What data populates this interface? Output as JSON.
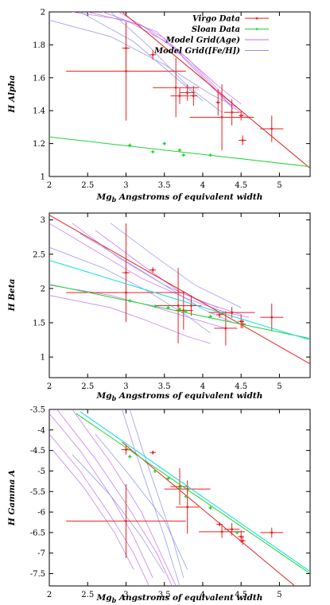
{
  "chart_data": [
    {
      "type": "scatter",
      "xlabel": "Mg_b Angstroms of equivalent width",
      "ylabel": "H Alpha",
      "xlim": [
        2,
        5.4
      ],
      "ylim": [
        1,
        2
      ],
      "xticks": [
        "2",
        "2.5",
        "3",
        "3.5",
        "4",
        "4.5",
        "5"
      ],
      "yticks": [
        "1",
        "1.2",
        "1.4",
        "1.6",
        "1.8",
        "2"
      ],
      "legend": {
        "placement": "top-right",
        "entries": [
          "Virgo Data",
          "Sloan Data",
          "Model Grid(Age)",
          "Model Grid([Fe/H])"
        ]
      },
      "series": [
        {
          "name": "Virgo Data",
          "color": "#e8211d",
          "points": [
            {
              "x": 3.0,
              "y": 1.78,
              "xerr": 0.05,
              "yerr": 0.12
            },
            {
              "x": 3.0,
              "y": 1.64,
              "xerr": 0.78,
              "yerr": 0.3
            },
            {
              "x": 3.35,
              "y": 1.74,
              "xerr": 0.04,
              "yerr": 0.03
            },
            {
              "x": 3.65,
              "y": 1.54,
              "xerr": 0.3,
              "yerr": 0.18
            },
            {
              "x": 3.7,
              "y": 1.49,
              "xerr": 0.12,
              "yerr": 0.05
            },
            {
              "x": 3.8,
              "y": 1.51,
              "xerr": 0.1,
              "yerr": 0.05
            },
            {
              "x": 3.88,
              "y": 1.49,
              "xerr": 0.05,
              "yerr": 0.06
            },
            {
              "x": 4.2,
              "y": 1.45,
              "xerr": 0.03,
              "yerr": 0.08
            },
            {
              "x": 4.25,
              "y": 1.36,
              "xerr": 0.42,
              "yerr": 0.2
            },
            {
              "x": 4.38,
              "y": 1.39,
              "xerr": 0.1,
              "yerr": 0.08
            },
            {
              "x": 4.5,
              "y": 1.37,
              "xerr": 0.03,
              "yerr": 0.03
            },
            {
              "x": 4.52,
              "y": 1.22,
              "xerr": 0.05,
              "yerr": 0.03
            },
            {
              "x": 4.9,
              "y": 1.29,
              "xerr": 0.15,
              "yerr": 0.08
            }
          ],
          "fit": [
            [
              2.95,
              2.0
            ],
            [
              5.4,
              1.05
            ]
          ]
        },
        {
          "name": "Sloan Data",
          "color": "#22d433",
          "points": [
            {
              "x": 3.05,
              "y": 1.19
            },
            {
              "x": 3.35,
              "y": 1.15
            },
            {
              "x": 3.5,
              "y": 1.2
            },
            {
              "x": 3.7,
              "y": 1.16
            },
            {
              "x": 3.75,
              "y": 1.13
            },
            {
              "x": 4.1,
              "y": 1.13
            }
          ],
          "fit": [
            [
              2,
              1.24
            ],
            [
              5.4,
              1.06
            ]
          ]
        }
      ],
      "model_grid_age": [
        [
          [
            2.3,
            2.0
          ],
          [
            3.0,
            1.95
          ],
          [
            3.6,
            1.8
          ],
          [
            4.2,
            1.55
          ],
          [
            4.5,
            1.44
          ]
        ],
        [
          [
            2.5,
            2.0
          ],
          [
            3.2,
            1.92
          ],
          [
            3.8,
            1.72
          ],
          [
            4.3,
            1.48
          ],
          [
            4.55,
            1.38
          ]
        ],
        [
          [
            2.7,
            2.0
          ],
          [
            3.4,
            1.88
          ],
          [
            3.9,
            1.66
          ],
          [
            4.35,
            1.44
          ],
          [
            4.6,
            1.35
          ]
        ],
        [
          [
            2.9,
            2.0
          ],
          [
            3.5,
            1.84
          ],
          [
            4.0,
            1.6
          ],
          [
            4.4,
            1.41
          ]
        ]
      ],
      "model_grid_feh": [
        [
          [
            2.0,
            1.95
          ],
          [
            2.8,
            1.85
          ],
          [
            3.5,
            1.68
          ],
          [
            4.1,
            1.5
          ],
          [
            4.45,
            1.42
          ]
        ],
        [
          [
            2.4,
            2.0
          ],
          [
            3.1,
            1.82
          ],
          [
            3.6,
            1.62
          ],
          [
            4.0,
            1.46
          ]
        ],
        [
          [
            2.8,
            2.0
          ],
          [
            3.3,
            1.79
          ],
          [
            3.8,
            1.55
          ],
          [
            4.25,
            1.39
          ]
        ]
      ]
    },
    {
      "type": "scatter",
      "xlabel": "Mg_b Angstroms of equivalent width",
      "ylabel": "H Beta",
      "xlim": [
        2,
        5.4
      ],
      "ylim": [
        0.7,
        3.1
      ],
      "xticks": [
        "2",
        "2.5",
        "3",
        "3.5",
        "4",
        "4.5",
        "5"
      ],
      "yticks": [
        "1",
        "1.5",
        "2",
        "2.5",
        "3"
      ],
      "series": [
        {
          "name": "Virgo Data",
          "color": "#e8211d",
          "points": [
            {
              "x": 3.0,
              "y": 2.23,
              "xerr": 0.05,
              "yerr": 0.72
            },
            {
              "x": 3.0,
              "y": 1.94,
              "xerr": 0.78,
              "yerr": 0.4
            },
            {
              "x": 3.35,
              "y": 2.27,
              "xerr": 0.04,
              "yerr": 0.04
            },
            {
              "x": 3.68,
              "y": 1.75,
              "xerr": 0.3,
              "yerr": 0.55
            },
            {
              "x": 3.75,
              "y": 1.68,
              "xerr": 0.12,
              "yerr": 0.28
            },
            {
              "x": 3.85,
              "y": 1.75,
              "xerr": 0.1,
              "yerr": 0.15
            },
            {
              "x": 4.22,
              "y": 1.62,
              "xerr": 0.04,
              "yerr": 0.05
            },
            {
              "x": 4.3,
              "y": 1.42,
              "xerr": 0.15,
              "yerr": 0.25
            },
            {
              "x": 4.38,
              "y": 1.65,
              "xerr": 0.3,
              "yerr": 0.08
            },
            {
              "x": 4.5,
              "y": 1.52,
              "xerr": 0.04,
              "yerr": 0.1
            },
            {
              "x": 4.52,
              "y": 1.48,
              "xerr": 0.04,
              "yerr": 0.06
            },
            {
              "x": 4.9,
              "y": 1.58,
              "xerr": 0.15,
              "yerr": 0.2
            }
          ],
          "fit": [
            [
              2,
              3.07
            ],
            [
              5.4,
              0.9
            ]
          ]
        },
        {
          "name": "Sloan Data",
          "color": "#22d433",
          "points": [
            {
              "x": 3.05,
              "y": 1.82
            },
            {
              "x": 3.38,
              "y": 1.74
            },
            {
              "x": 3.55,
              "y": 1.72
            },
            {
              "x": 3.7,
              "y": 1.7
            },
            {
              "x": 3.78,
              "y": 1.67
            },
            {
              "x": 4.1,
              "y": 1.59
            }
          ],
          "fit": [
            [
              2,
              2.06
            ],
            [
              5.4,
              1.27
            ]
          ]
        },
        {
          "name": "",
          "color": "#00e0e0",
          "points": [],
          "fit": [
            [
              2,
              2.41
            ],
            [
              5.4,
              1.25
            ]
          ]
        }
      ],
      "model_grid_age": [
        [
          [
            2.0,
            2.95
          ],
          [
            2.6,
            2.55
          ],
          [
            3.2,
            2.15
          ],
          [
            3.8,
            1.85
          ],
          [
            4.3,
            1.65
          ],
          [
            4.6,
            1.58
          ]
        ],
        [
          [
            2.3,
            2.95
          ],
          [
            2.9,
            2.45
          ],
          [
            3.5,
            2.05
          ],
          [
            4.0,
            1.8
          ],
          [
            4.5,
            1.62
          ]
        ],
        [
          [
            2.6,
            2.85
          ],
          [
            3.2,
            2.35
          ],
          [
            3.7,
            1.95
          ],
          [
            4.2,
            1.72
          ]
        ],
        [
          [
            2.0,
            2.05
          ],
          [
            2.8,
            1.9
          ],
          [
            3.4,
            1.72
          ],
          [
            3.9,
            1.55
          ],
          [
            4.3,
            1.42
          ]
        ],
        [
          [
            2.0,
            1.9
          ],
          [
            2.8,
            1.72
          ],
          [
            3.3,
            1.52
          ],
          [
            3.8,
            1.3
          ],
          [
            4.1,
            1.2
          ]
        ]
      ],
      "model_grid_feh": [
        [
          [
            2.0,
            2.6
          ],
          [
            2.7,
            2.3
          ],
          [
            3.3,
            1.95
          ],
          [
            3.8,
            1.6
          ],
          [
            4.1,
            1.35
          ]
        ],
        [
          [
            2.4,
            2.8
          ],
          [
            3.0,
            2.4
          ],
          [
            3.5,
            2.05
          ],
          [
            4.0,
            1.7
          ],
          [
            4.4,
            1.5
          ]
        ],
        [
          [
            2.8,
            2.95
          ],
          [
            3.4,
            2.45
          ],
          [
            3.9,
            2.05
          ],
          [
            4.5,
            1.72
          ]
        ]
      ]
    },
    {
      "type": "scatter",
      "xlabel": "Mg_b Angstroms of equivalent width",
      "ylabel": "H Gamma A",
      "xlim": [
        2,
        5.4
      ],
      "ylim": [
        -7.8,
        -3.5
      ],
      "xticks": [
        "2",
        "2.5",
        "3",
        "3.5",
        "4",
        "4.5",
        "5"
      ],
      "yticks": [
        "-3.5",
        "-4",
        "-4.5",
        "-5",
        "-5.5",
        "-6",
        "-6.5",
        "-7",
        "-7.5"
      ],
      "series": [
        {
          "name": "Virgo Data",
          "color": "#e8211d",
          "points": [
            {
              "x": 3.0,
              "y": -4.48,
              "xerr": 0.06,
              "yerr": 0.12
            },
            {
              "x": 3.0,
              "y": -6.22,
              "xerr": 0.78,
              "yerr": 0.9
            },
            {
              "x": 3.35,
              "y": -4.55,
              "xerr": 0.04,
              "yerr": 0.05
            },
            {
              "x": 3.7,
              "y": -5.38,
              "xerr": 0.12,
              "yerr": 0.45
            },
            {
              "x": 3.8,
              "y": -5.88,
              "xerr": 0.15,
              "yerr": 0.65
            },
            {
              "x": 3.8,
              "y": -5.44,
              "xerr": 0.3,
              "yerr": 0.08
            },
            {
              "x": 4.22,
              "y": -6.3,
              "xerr": 0.04,
              "yerr": 0.05
            },
            {
              "x": 4.25,
              "y": -6.48,
              "xerr": 0.3,
              "yerr": 0.15
            },
            {
              "x": 4.38,
              "y": -6.42,
              "xerr": 0.1,
              "yerr": 0.15
            },
            {
              "x": 4.5,
              "y": -6.6,
              "xerr": 0.04,
              "yerr": 0.15
            },
            {
              "x": 4.52,
              "y": -6.7,
              "xerr": 0.04,
              "yerr": 0.1
            },
            {
              "x": 4.9,
              "y": -6.5,
              "xerr": 0.15,
              "yerr": 0.12
            }
          ],
          "fit": [
            [
              2.95,
              -4.3
            ],
            [
              5.2,
              -7.8
            ]
          ]
        },
        {
          "name": "Sloan Data",
          "color": "#22d433",
          "points": [
            {
              "x": 3.05,
              "y": -4.65
            },
            {
              "x": 3.38,
              "y": -5.0
            },
            {
              "x": 3.55,
              "y": -5.18
            },
            {
              "x": 3.7,
              "y": -5.42
            },
            {
              "x": 3.78,
              "y": -5.62
            },
            {
              "x": 4.1,
              "y": -5.9
            },
            {
              "x": 4.45,
              "y": -6.5
            }
          ],
          "fit": [
            [
              2.35,
              -3.6
            ],
            [
              5.4,
              -7.5
            ]
          ]
        },
        {
          "name": "",
          "color": "#00e0e0",
          "points": [],
          "fit": [
            [
              2.4,
              -3.55
            ],
            [
              5.4,
              -7.45
            ]
          ]
        }
      ],
      "model_grid_age": [
        [
          [
            2.0,
            -3.6
          ],
          [
            2.4,
            -4.5
          ],
          [
            2.8,
            -5.6
          ],
          [
            3.1,
            -6.6
          ],
          [
            3.35,
            -7.6
          ]
        ],
        [
          [
            2.0,
            -4.1
          ],
          [
            2.4,
            -5.0
          ],
          [
            2.8,
            -6.1
          ],
          [
            3.1,
            -7.0
          ],
          [
            3.3,
            -7.8
          ]
        ],
        [
          [
            2.05,
            -4.5
          ],
          [
            2.45,
            -5.4
          ],
          [
            2.85,
            -6.5
          ],
          [
            3.1,
            -7.4
          ]
        ],
        [
          [
            2.1,
            -3.5
          ],
          [
            2.6,
            -4.7
          ],
          [
            3.0,
            -5.8
          ],
          [
            3.4,
            -7.0
          ],
          [
            3.6,
            -7.8
          ]
        ],
        [
          [
            2.3,
            -3.5
          ],
          [
            2.8,
            -4.8
          ],
          [
            3.2,
            -6.0
          ],
          [
            3.5,
            -7.2
          ],
          [
            3.65,
            -7.8
          ]
        ]
      ],
      "model_grid_feh": [
        [
          [
            2.95,
            -3.5
          ],
          [
            3.1,
            -4.4
          ],
          [
            3.3,
            -5.5
          ],
          [
            3.5,
            -6.6
          ],
          [
            3.7,
            -7.8
          ]
        ],
        [
          [
            3.05,
            -3.5
          ],
          [
            3.2,
            -4.4
          ],
          [
            3.4,
            -5.5
          ],
          [
            3.6,
            -6.6
          ],
          [
            3.75,
            -7.6
          ]
        ],
        [
          [
            2.6,
            -4.1
          ],
          [
            3.0,
            -5.0
          ],
          [
            3.5,
            -6.2
          ],
          [
            3.8,
            -7.4
          ]
        ],
        [
          [
            2.3,
            -4.6
          ],
          [
            2.8,
            -5.6
          ],
          [
            3.2,
            -6.6
          ],
          [
            3.5,
            -7.5
          ]
        ]
      ]
    }
  ],
  "colors": {
    "virgo": "#e8211d",
    "sloan": "#22d433",
    "cyan_fit": "#00e0e0",
    "model_age": "#c070f0",
    "model_feh": "#9090f0"
  }
}
